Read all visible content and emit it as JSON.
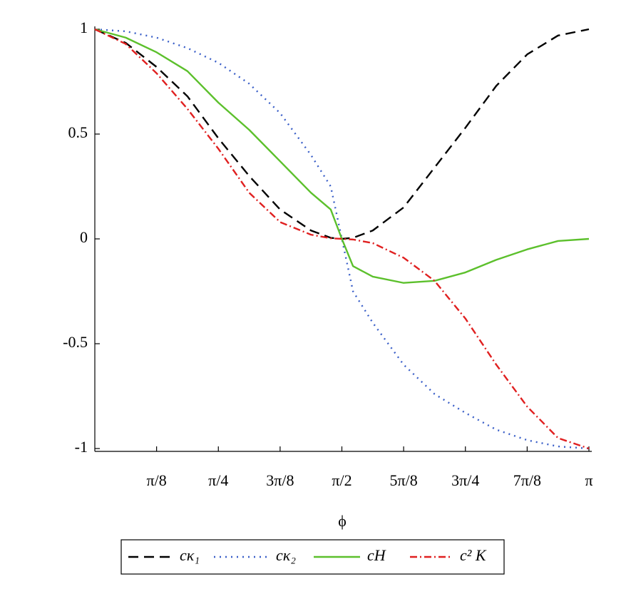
{
  "chart_data": {
    "type": "line",
    "x_label": "ϕ",
    "x": [
      0,
      0.1963,
      0.3927,
      0.589,
      0.7854,
      0.9817,
      1.1781,
      1.3744,
      1.5,
      1.5708,
      1.6416,
      1.7671,
      1.9635,
      2.1598,
      2.3562,
      2.5525,
      2.7489,
      2.9452,
      3.1416
    ],
    "xlim": [
      0,
      3.1416
    ],
    "ylim": [
      -1,
      1
    ],
    "xticks": [
      {
        "value": 0.3927,
        "label": "π/8"
      },
      {
        "value": 0.7854,
        "label": "π/4"
      },
      {
        "value": 1.1781,
        "label": "3π/8"
      },
      {
        "value": 1.5708,
        "label": "π/2"
      },
      {
        "value": 1.9635,
        "label": "5π/8"
      },
      {
        "value": 2.3562,
        "label": "3π/4"
      },
      {
        "value": 2.7489,
        "label": "7π/8"
      },
      {
        "value": 3.1416,
        "label": "π"
      }
    ],
    "yticks": [
      -1,
      -0.5,
      0,
      0.5,
      1
    ],
    "legend": "bottom",
    "series": [
      {
        "name": "cκ₁",
        "color": "#000000",
        "dash": "14,8",
        "values": [
          1,
          0.935,
          0.82,
          0.68,
          0.48,
          0.3,
          0.14,
          0.04,
          0.005,
          0,
          0.005,
          0.04,
          0.15,
          0.34,
          0.53,
          0.73,
          0.88,
          0.97,
          1
        ]
      },
      {
        "name": "cκ₂",
        "color": "#3a5fc8",
        "dash": "2,6",
        "values": [
          1,
          0.99,
          0.96,
          0.91,
          0.84,
          0.74,
          0.6,
          0.4,
          0.25,
          0,
          -0.25,
          -0.4,
          -0.6,
          -0.74,
          -0.83,
          -0.91,
          -0.96,
          -0.99,
          -1
        ]
      },
      {
        "name": "cH",
        "color": "#5cc02c",
        "dash": "none",
        "values": [
          1,
          0.96,
          0.89,
          0.8,
          0.65,
          0.52,
          0.37,
          0.22,
          0.14,
          0,
          -0.13,
          -0.18,
          -0.21,
          -0.2,
          -0.16,
          -0.1,
          -0.05,
          -0.01,
          0
        ]
      },
      {
        "name": "c² K",
        "color": "#e02020",
        "dash": "10,4,2,4",
        "values": [
          1,
          0.93,
          0.79,
          0.62,
          0.43,
          0.22,
          0.08,
          0.02,
          0.003,
          0,
          -0.003,
          -0.02,
          -0.09,
          -0.2,
          -0.38,
          -0.6,
          -0.8,
          -0.95,
          -1
        ]
      }
    ]
  }
}
